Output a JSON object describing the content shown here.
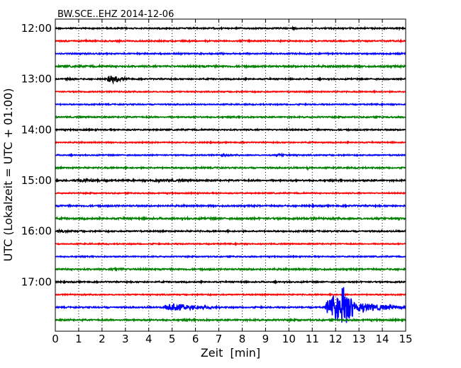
{
  "chart_data": {
    "type": "line",
    "title": "BW.SCE..EHZ 2014-12-06",
    "xlabel": "Zeit  [min]",
    "ylabel": "UTC (Lokalzeit = UTC + 01:00)",
    "xlim": [
      0,
      15
    ],
    "x_ticks": [
      "0",
      "1",
      "2",
      "3",
      "4",
      "5",
      "6",
      "7",
      "8",
      "9",
      "10",
      "11",
      "12",
      "13",
      "14",
      "15"
    ],
    "y_tick_labels": [
      "12:00",
      "13:00",
      "14:00",
      "15:00",
      "16:00",
      "17:00"
    ],
    "trace_start_times": [
      "12:00",
      "12:15",
      "12:30",
      "12:45",
      "13:00",
      "13:15",
      "13:30",
      "13:45",
      "14:00",
      "14:15",
      "14:30",
      "14:45",
      "15:00",
      "15:15",
      "15:30",
      "15:45",
      "16:00",
      "16:15",
      "16:30",
      "16:45",
      "17:00",
      "17:15",
      "17:30",
      "17:45"
    ],
    "trace_interval_min": 15,
    "colors": [
      "#000000",
      "#ff0000",
      "#0000ff",
      "#008000"
    ],
    "grid": "vertical dotted",
    "amplitude_unit": "fraction of trace spacing",
    "noise_levels": [
      0.06,
      0.06,
      0.06,
      0.08,
      0.06,
      0.05,
      0.05,
      0.06,
      0.06,
      0.05,
      0.05,
      0.06,
      0.07,
      0.05,
      0.07,
      0.08,
      0.06,
      0.05,
      0.05,
      0.07,
      0.06,
      0.05,
      0.06,
      0.07
    ],
    "events": [
      {
        "trace": 0,
        "start": 10.1,
        "duration": 0.3,
        "amplitude": 0.12
      },
      {
        "trace": 4,
        "start": 0.4,
        "duration": 0.6,
        "amplitude": 0.12
      },
      {
        "trace": 4,
        "start": 2.2,
        "duration": 1.1,
        "amplitude": 0.5
      },
      {
        "trace": 10,
        "start": 7.1,
        "duration": 0.4,
        "amplitude": 0.2
      },
      {
        "trace": 10,
        "start": 9.4,
        "duration": 1.2,
        "amplitude": 0.1
      },
      {
        "trace": 11,
        "start": 10.75,
        "duration": 0.3,
        "amplitude": 0.15
      },
      {
        "trace": 12,
        "start": 0.9,
        "duration": 1.8,
        "amplitude": 0.15
      },
      {
        "trace": 12,
        "start": 4.0,
        "duration": 2.5,
        "amplitude": 0.08
      },
      {
        "trace": 16,
        "start": 0.0,
        "duration": 1.3,
        "amplitude": 0.12
      },
      {
        "trace": 19,
        "start": 2.4,
        "duration": 1.2,
        "amplitude": 0.12
      },
      {
        "trace": 22,
        "start": 4.55,
        "duration": 2.5,
        "amplitude": 0.6
      },
      {
        "trace": 22,
        "start": 11.5,
        "duration": 3.5,
        "amplitude": 1.6
      },
      {
        "trace": 22,
        "start": 12.2,
        "duration": 0.6,
        "amplitude": 2.8
      }
    ]
  }
}
